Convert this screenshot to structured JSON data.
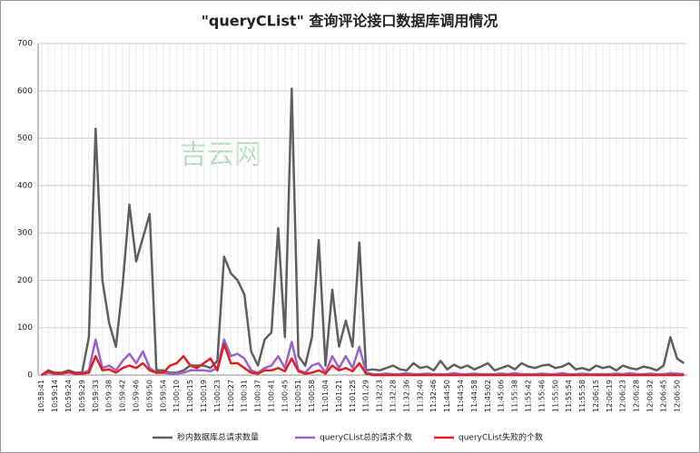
{
  "chart_data": {
    "type": "line",
    "title": "\"queryCList\" 查询评论接口数据库调用情况",
    "watermark": "吉云网",
    "categories": [
      "10:58:41",
      null,
      "10:59:14",
      null,
      "10:59:24",
      null,
      "10:59:29",
      null,
      "10:59:33",
      null,
      "10:59:38",
      null,
      "10:59:42",
      null,
      "10:59:46",
      null,
      "10:59:50",
      null,
      "10:59:54",
      null,
      "11:00:10",
      null,
      "11:00:15",
      null,
      "11:00:19",
      null,
      "11:00:23",
      null,
      "11:00:27",
      null,
      "11:00:31",
      null,
      "11:00:37",
      null,
      "11:00:41",
      null,
      "11:00:45",
      null,
      "11:00:51",
      null,
      "11:00:58",
      null,
      "11:01:04",
      null,
      "11:01:21",
      null,
      "11:01:25",
      null,
      "11:01:29",
      null,
      "11:32:23",
      null,
      "11:32:28",
      null,
      "11:32:36",
      null,
      "11:32:40",
      null,
      "11:32:46",
      null,
      "11:44:50",
      null,
      "11:44:54",
      null,
      "11:44:58",
      null,
      "11:45:02",
      null,
      "11:45:06",
      null,
      "11:55:38",
      null,
      "11:55:42",
      null,
      "11:55:46",
      null,
      "11:55:50",
      null,
      "11:55:54",
      null,
      "11:55:58",
      null,
      "12:06:15",
      null,
      "12:06:19",
      null,
      "12:06:23",
      null,
      "12:06:28",
      null,
      "12:06:32",
      null,
      "12:06:45",
      null,
      "12:06:50",
      null
    ],
    "series": [
      {
        "name": "秒内数据库总请求数量",
        "color": "#5f5f5f",
        "values": [
          0,
          10,
          5,
          5,
          10,
          5,
          5,
          80,
          520,
          200,
          110,
          60,
          190,
          360,
          240,
          290,
          340,
          10,
          10,
          5,
          5,
          10,
          20,
          20,
          20,
          15,
          30,
          250,
          215,
          200,
          170,
          50,
          20,
          75,
          90,
          310,
          80,
          605,
          40,
          20,
          80,
          285,
          20,
          180,
          60,
          115,
          60,
          280,
          10,
          12,
          10,
          15,
          20,
          12,
          10,
          25,
          15,
          18,
          10,
          30,
          12,
          22,
          15,
          20,
          12,
          18,
          25,
          10,
          15,
          20,
          12,
          25,
          18,
          15,
          20,
          22,
          15,
          18,
          25,
          12,
          15,
          10,
          20,
          15,
          18,
          10,
          20,
          15,
          12,
          18,
          15,
          10,
          20,
          80,
          35,
          25
        ]
      },
      {
        "name": "queryCList总的请求个数",
        "color": "#9b62c8",
        "values": [
          0,
          5,
          3,
          3,
          5,
          3,
          3,
          10,
          75,
          15,
          20,
          10,
          30,
          45,
          25,
          50,
          15,
          5,
          5,
          3,
          3,
          5,
          10,
          10,
          10,
          8,
          15,
          75,
          40,
          45,
          35,
          10,
          5,
          15,
          20,
          40,
          15,
          70,
          10,
          5,
          20,
          25,
          5,
          40,
          15,
          40,
          15,
          60,
          5,
          2,
          2,
          3,
          2,
          2,
          4,
          2,
          2,
          3,
          2,
          2,
          2,
          4,
          2,
          2,
          3,
          2,
          2,
          2,
          3,
          2,
          4,
          2,
          2,
          2,
          3,
          2,
          2,
          4,
          2,
          2,
          3,
          2,
          2,
          2,
          2,
          3,
          2,
          4,
          2,
          2,
          3,
          2,
          2,
          4,
          3,
          2
        ]
      },
      {
        "name": "queryCList失败的个数",
        "color": "#e02020",
        "values": [
          0,
          8,
          3,
          3,
          8,
          3,
          3,
          5,
          40,
          10,
          12,
          5,
          15,
          20,
          15,
          25,
          10,
          5,
          5,
          20,
          25,
          40,
          20,
          15,
          25,
          35,
          10,
          65,
          25,
          25,
          15,
          5,
          3,
          10,
          10,
          15,
          8,
          35,
          8,
          3,
          5,
          10,
          3,
          20,
          10,
          15,
          8,
          25,
          3,
          0,
          0,
          0,
          0,
          0,
          0,
          0,
          0,
          0,
          0,
          0,
          0,
          0,
          0,
          0,
          0,
          0,
          0,
          0,
          0,
          0,
          0,
          0,
          0,
          0,
          0,
          0,
          0,
          0,
          0,
          0,
          0,
          0,
          0,
          0,
          0,
          0,
          0,
          0,
          0,
          0,
          0,
          0,
          0,
          0,
          0,
          0
        ]
      }
    ],
    "ylim": [
      0,
      700
    ],
    "yticks": [
      0,
      100,
      200,
      300,
      400,
      500,
      600,
      700
    ],
    "grid": true,
    "xgrid": true,
    "legend": "bottom"
  }
}
